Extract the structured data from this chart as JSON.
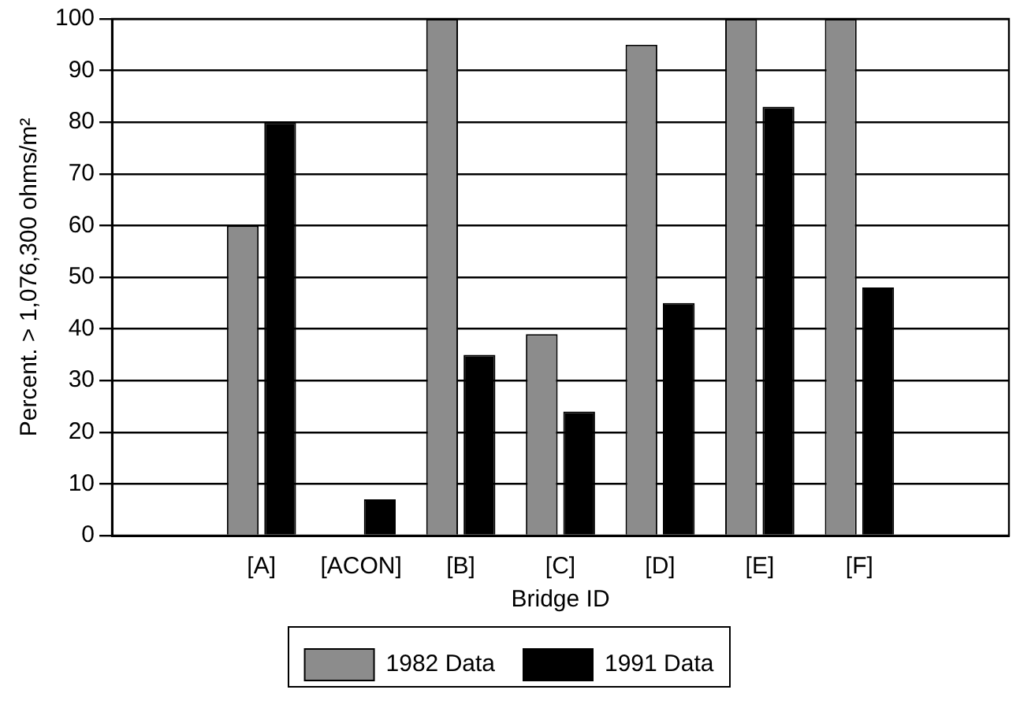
{
  "chart_data": {
    "type": "bar",
    "xlabel": "Bridge ID",
    "ylabel": "Percent. > 1,076,300 ohms/m²",
    "categories": [
      null,
      "[A]",
      "[ACON]",
      "[B]",
      "[C]",
      "[D]",
      "[E]",
      "[F]",
      null
    ],
    "series": [
      {
        "name": "1982 Data",
        "color": "#8c8c8c",
        "values": [
          null,
          60,
          0,
          100,
          39,
          95,
          100,
          100,
          null
        ]
      },
      {
        "name": "1991 Data",
        "color": "#000000",
        "values": [
          null,
          80,
          7,
          35,
          24,
          45,
          83,
          48,
          null
        ]
      }
    ],
    "ylim": [
      0,
      100
    ],
    "yticks": [
      0,
      10,
      20,
      30,
      40,
      50,
      60,
      70,
      80,
      90,
      100
    ],
    "grid": "y",
    "legend": "bottom"
  }
}
